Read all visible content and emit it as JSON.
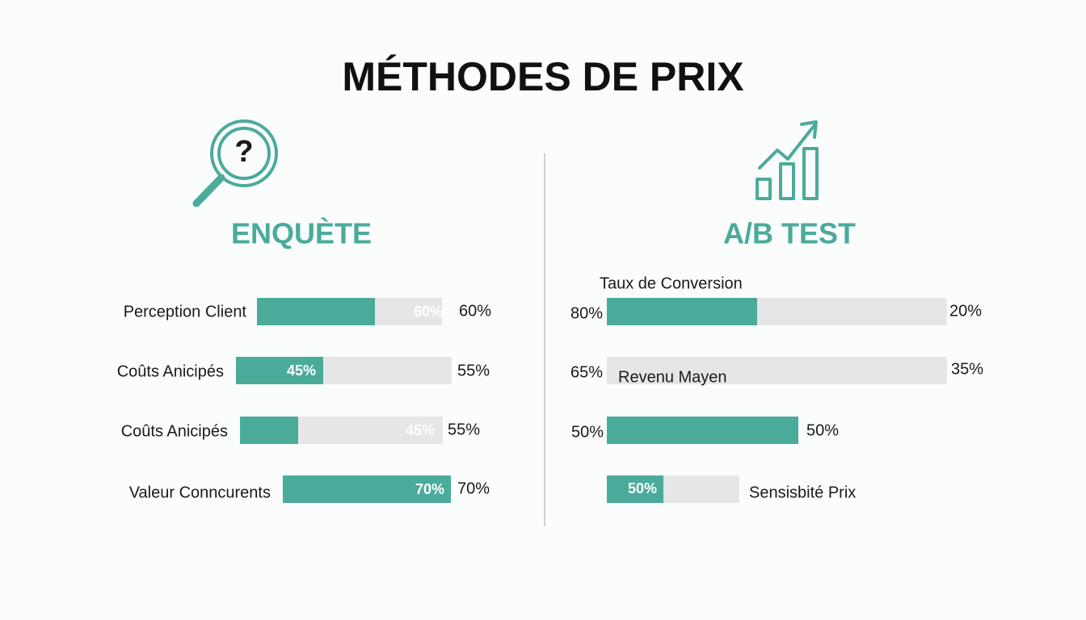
{
  "title": "MÉTHODES DE PRIX",
  "left": {
    "heading": "ENQUÈTE",
    "rows": [
      {
        "label": "Perception Client",
        "inner": "60%",
        "outer": "60%"
      },
      {
        "label": "Coûts Anicipés",
        "inner": "45%",
        "outer": "55%"
      },
      {
        "label": "Coûts Anicipés",
        "inner": "45%",
        "outer": "55%"
      },
      {
        "label": "Valeur Conncurents",
        "inner": "70%",
        "outer": "70%"
      }
    ]
  },
  "right": {
    "heading": "A/B TEST",
    "caption": "Taux de Conversion",
    "rows": [
      {
        "left": "80%",
        "right": "20%"
      },
      {
        "left": "65%",
        "inner": "Revenu Mayen",
        "right": "35%"
      },
      {
        "left": "50%",
        "right": "50%"
      },
      {
        "inner": "50%",
        "right": "Sensisbité Prix"
      }
    ]
  }
}
